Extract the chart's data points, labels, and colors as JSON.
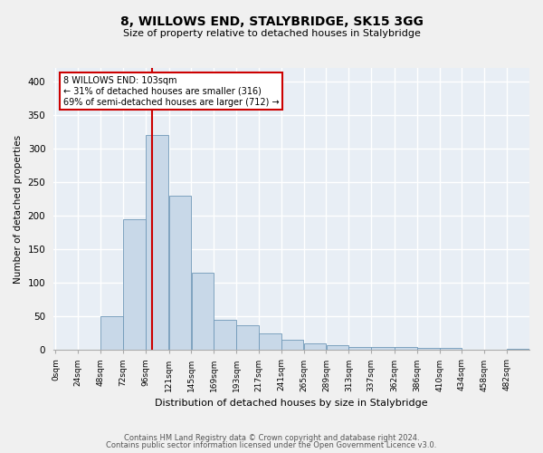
{
  "title": "8, WILLOWS END, STALYBRIDGE, SK15 3GG",
  "subtitle": "Size of property relative to detached houses in Stalybridge",
  "xlabel": "Distribution of detached houses by size in Stalybridge",
  "ylabel": "Number of detached properties",
  "bar_color": "#c8d8e8",
  "bar_edgecolor": "#7098b8",
  "background_color": "#e8eef5",
  "grid_color": "#ffffff",
  "property_line_x": 103,
  "property_line_color": "#cc0000",
  "annotation_line1": "8 WILLOWS END: 103sqm",
  "annotation_line2": "← 31% of detached houses are smaller (316)",
  "annotation_line3": "69% of semi-detached houses are larger (712) →",
  "annotation_box_color": "#cc0000",
  "bins": [
    0,
    24,
    48,
    72,
    96,
    121,
    145,
    169,
    193,
    217,
    241,
    265,
    289,
    313,
    337,
    362,
    386,
    410,
    434,
    458,
    482,
    506
  ],
  "bin_labels": [
    "0sqm",
    "24sqm",
    "48sqm",
    "72sqm",
    "96sqm",
    "121sqm",
    "145sqm",
    "169sqm",
    "193sqm",
    "217sqm",
    "241sqm",
    "265sqm",
    "289sqm",
    "313sqm",
    "337sqm",
    "362sqm",
    "386sqm",
    "410sqm",
    "434sqm",
    "458sqm",
    "482sqm"
  ],
  "values": [
    1,
    1,
    50,
    195,
    320,
    230,
    115,
    45,
    37,
    25,
    15,
    10,
    7,
    5,
    4,
    5,
    3,
    3,
    1,
    1,
    2
  ],
  "ylim": [
    0,
    420
  ],
  "yticks": [
    0,
    50,
    100,
    150,
    200,
    250,
    300,
    350,
    400
  ],
  "footer_line1": "Contains HM Land Registry data © Crown copyright and database right 2024.",
  "footer_line2": "Contains public sector information licensed under the Open Government Licence v3.0.",
  "fig_width": 6.0,
  "fig_height": 5.0,
  "fig_dpi": 100
}
